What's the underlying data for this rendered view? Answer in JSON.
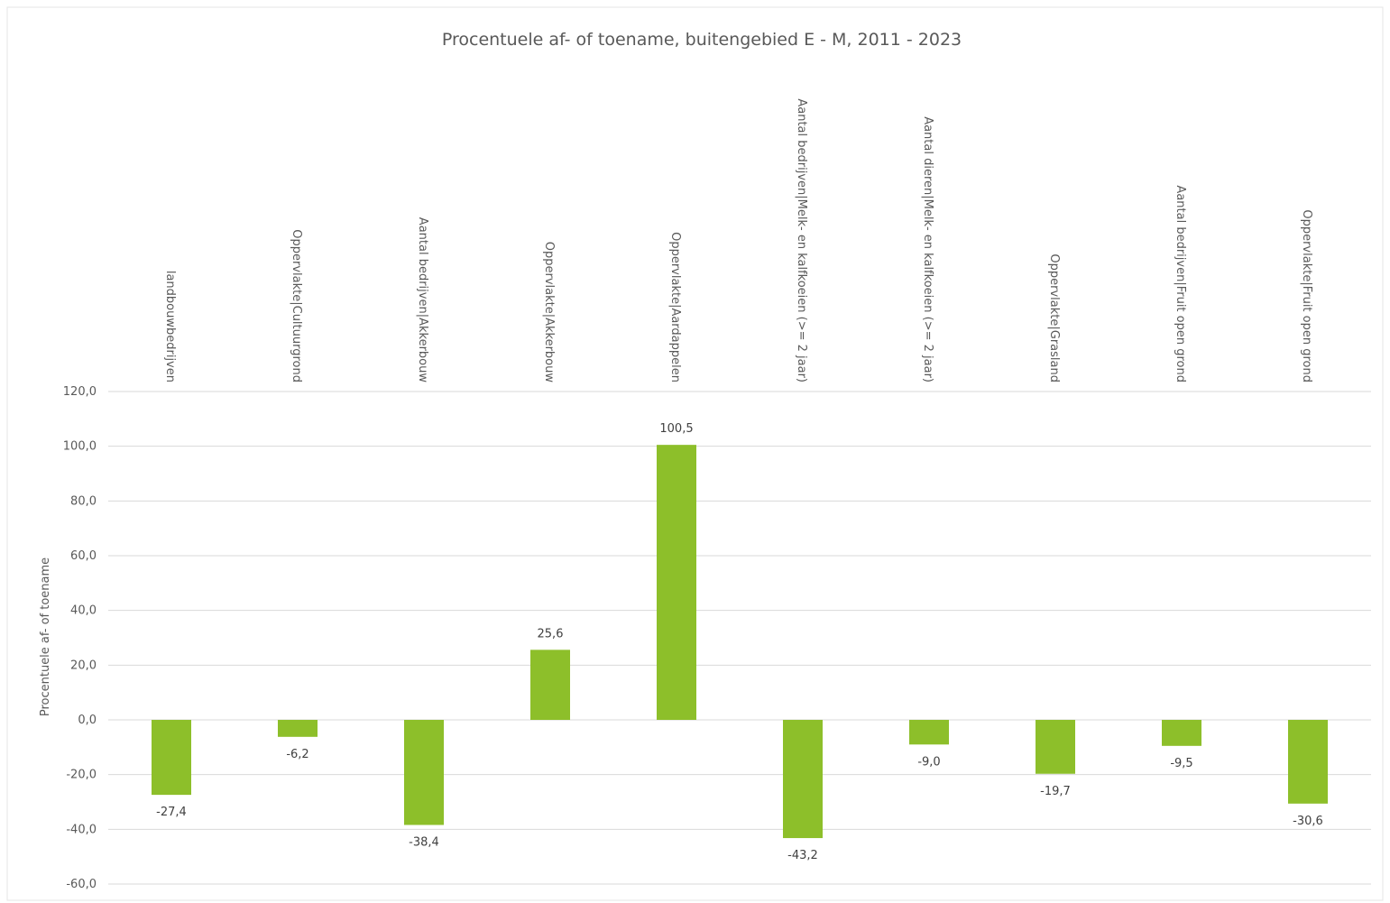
{
  "chart_data": {
    "type": "bar",
    "title": "Procentuele af- of toename, buitengebied E - M, 2011 - 2023",
    "xlabel": "",
    "ylabel": "Procentuele af- of toename",
    "ylim": [
      -60,
      120
    ],
    "yticks": [
      120,
      100,
      80,
      60,
      40,
      20,
      0,
      -20,
      -40,
      -60
    ],
    "ytick_labels": [
      "120,0",
      "100,0",
      "80,0",
      "60,0",
      "40,0",
      "20,0",
      "0,0",
      "-20,0",
      "-40,0",
      "-60,0"
    ],
    "categories": [
      "landbouwbedrijven",
      "Oppervlakte|Cultuurgrond",
      "Aantal bedrijven|Akkerbouw",
      "Oppervlakte|Akkerbouw",
      "Oppervlakte|Aardappelen",
      "Aantal bedrijven|Melk- en kalfkoeien (>= 2 jaar)",
      "Aantal dieren|Melk- en kalfkoeien (>= 2 jaar)",
      "Oppervlakte|Grasland",
      "Aantal bedrijven|Fruit open grond",
      "Oppervlakte|Fruit open grond"
    ],
    "values": [
      -27.4,
      -6.2,
      -38.4,
      25.6,
      100.5,
      -43.2,
      -9.0,
      -19.7,
      -9.5,
      -30.6
    ],
    "value_labels": [
      "-27,4",
      "-6,2",
      "-38,4",
      "25,6",
      "100,5",
      "-43,2",
      "-9,0",
      "-19,7",
      "-9,5",
      "-30,6"
    ],
    "bar_color": "#8dbf2a",
    "grid": true,
    "legend": "none"
  }
}
